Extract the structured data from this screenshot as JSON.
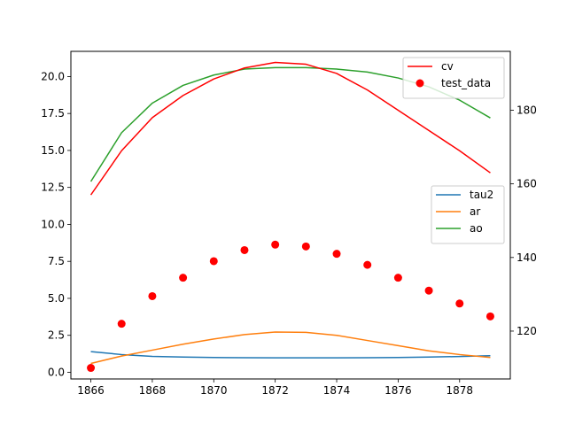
{
  "chart_data": {
    "type": "line",
    "title": "",
    "xlabel": "",
    "ylabel": "",
    "y2label": "",
    "x": [
      1866,
      1867,
      1868,
      1869,
      1870,
      1871,
      1872,
      1873,
      1874,
      1875,
      1876,
      1877,
      1878,
      1879
    ],
    "xlim": [
      1865.35,
      1879.65
    ],
    "ylim": [
      -0.45,
      21.7
    ],
    "y2lim": [
      107,
      196
    ],
    "xticks": [
      1866,
      1868,
      1870,
      1872,
      1874,
      1876,
      1878
    ],
    "yticks": [
      0.0,
      2.5,
      5.0,
      7.5,
      10.0,
      12.5,
      15.0,
      17.5,
      20.0
    ],
    "yticklabels": [
      "0.0",
      "2.5",
      "5.0",
      "7.5",
      "10.0",
      "12.5",
      "15.0",
      "17.5",
      "20.0"
    ],
    "y2ticks": [
      120,
      140,
      160,
      180
    ],
    "grid": false,
    "series": [
      {
        "name": "tau2",
        "axis": "left",
        "kind": "line",
        "color": "#1f77b4",
        "values": [
          1.4,
          1.2,
          1.08,
          1.03,
          1.0,
          0.99,
          0.98,
          0.98,
          0.98,
          0.99,
          1.0,
          1.03,
          1.07,
          1.12
        ]
      },
      {
        "name": "ar",
        "axis": "left",
        "kind": "line",
        "color": "#ff7f0e",
        "values": [
          0.6,
          1.1,
          1.5,
          1.9,
          2.25,
          2.55,
          2.72,
          2.7,
          2.5,
          2.15,
          1.8,
          1.45,
          1.2,
          1.0
        ]
      },
      {
        "name": "ao",
        "axis": "left",
        "kind": "line",
        "color": "#2ca02c",
        "values": [
          12.9,
          16.2,
          18.2,
          19.4,
          20.1,
          20.5,
          20.6,
          20.6,
          20.5,
          20.3,
          19.9,
          19.3,
          18.4,
          17.2
        ]
      },
      {
        "name": "cv",
        "axis": "right",
        "kind": "line",
        "color": "#ff0000",
        "values": [
          157,
          169,
          178,
          184,
          188.5,
          191.5,
          193,
          192.5,
          190,
          185.5,
          180,
          174.5,
          169,
          163
        ]
      },
      {
        "name": "test_data",
        "axis": "right",
        "kind": "scatter",
        "color": "#ff0000",
        "values": [
          110,
          122,
          129.5,
          134.5,
          139,
          142,
          143.5,
          143,
          141,
          138,
          134.5,
          131,
          127.5,
          124
        ]
      }
    ],
    "legends": [
      {
        "position": "upper-right",
        "entries": [
          "cv",
          "test_data"
        ]
      },
      {
        "position": "center-right",
        "entries": [
          "tau2",
          "ar",
          "ao"
        ]
      }
    ]
  }
}
